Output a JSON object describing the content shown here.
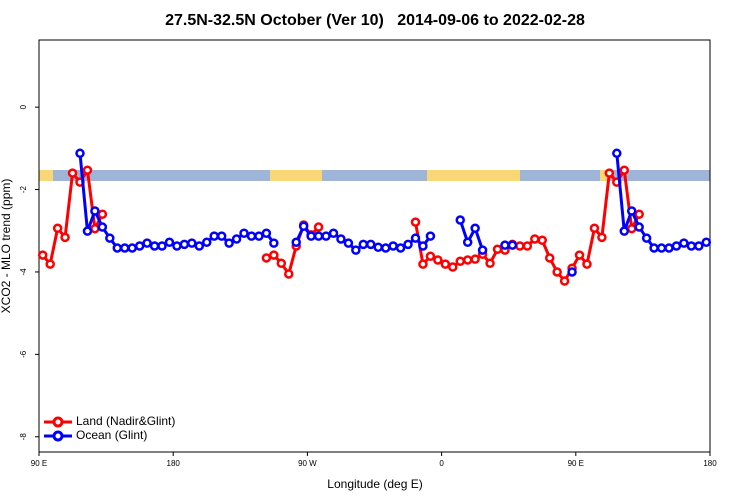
{
  "chart_data": {
    "type": "line",
    "title": "27.5N-32.5N October (Ver 10)   2014-09-06 to 2022-02-28",
    "x_label": "Longitude (deg E)",
    "y_label": "XCO2 - MLO trend (ppm)",
    "legend": "bottomleft",
    "xlim": [
      90,
      540
    ],
    "xticks": [
      {
        "value": 90,
        "label": "90 E"
      },
      180,
      {
        "value": 270,
        "label": "90 W"
      },
      {
        "value": 360,
        "label": "0"
      },
      {
        "value": 450,
        "label": "90 E"
      },
      {
        "value": 540,
        "label": "180"
      }
    ],
    "ylim": [
      -8.37,
      1.63
    ],
    "yticks": [
      0,
      -2,
      -4,
      -6,
      -8
    ],
    "x": [
      92.5,
      97.5,
      102.5,
      107.5,
      112.5,
      117.5,
      122.5,
      127.5,
      132.5,
      137.5,
      142.5,
      147.5,
      152.5,
      157.5,
      162.5,
      167.5,
      172.5,
      177.5,
      182.5,
      187.5,
      192.5,
      197.5,
      202.5,
      207.5,
      212.5,
      217.5,
      222.5,
      227.5,
      232.5,
      237.5,
      242.5,
      247.5,
      252.5,
      257.5,
      262.5,
      267.5,
      272.5,
      277.5,
      282.5,
      287.5,
      292.5,
      297.5,
      302.5,
      307.5,
      312.5,
      317.5,
      322.5,
      327.5,
      332.5,
      337.5,
      342.5,
      347.5,
      352.5,
      357.5,
      362.5,
      367.5,
      372.5,
      377.5,
      382.5,
      387.5,
      392.5,
      397.5,
      402.5,
      407.5,
      412.5,
      417.5,
      422.5,
      427.5,
      432.5,
      437.5,
      442.5,
      447.5,
      452.5,
      457.5,
      462.5,
      467.5,
      472.5,
      477.5,
      482.5,
      487.5,
      492.5,
      497.5,
      502.5,
      507.5,
      512.5,
      517.5,
      522.5,
      527.5,
      532.5,
      537.5
    ],
    "series": [
      {
        "name": "Land (Nadir&Glint)",
        "color": "#ff0000",
        "values": [
          -3.59,
          -3.81,
          -2.94,
          -3.16,
          -1.6,
          -1.82,
          -1.53,
          -2.95,
          -2.6,
          null,
          null,
          null,
          null,
          null,
          null,
          null,
          null,
          null,
          null,
          null,
          null,
          null,
          null,
          null,
          null,
          null,
          null,
          null,
          null,
          null,
          -3.66,
          -3.59,
          -3.79,
          -4.05,
          -3.37,
          -2.86,
          -3.1,
          -2.91,
          null,
          null,
          null,
          null,
          null,
          null,
          null,
          null,
          null,
          null,
          null,
          null,
          -2.79,
          -3.81,
          -3.62,
          -3.71,
          -3.81,
          -3.88,
          -3.74,
          -3.71,
          -3.69,
          -3.57,
          -3.79,
          -3.45,
          -3.47,
          -3.33,
          -3.37,
          -3.37,
          -3.2,
          -3.23,
          -3.66,
          -4.0,
          -4.22,
          -3.91,
          -3.59,
          -3.81,
          -2.94,
          -3.16,
          -1.6,
          -1.82,
          -1.53,
          -2.95,
          -2.6,
          null,
          null,
          null,
          null,
          null,
          null,
          null,
          null,
          null
        ]
      },
      {
        "name": "Ocean (Glint)",
        "color": "#0000ff",
        "values": [
          null,
          null,
          null,
          null,
          null,
          -1.12,
          -3.01,
          -2.52,
          -2.91,
          -3.18,
          -3.42,
          -3.42,
          -3.42,
          -3.37,
          -3.3,
          -3.37,
          -3.37,
          -3.28,
          -3.37,
          -3.33,
          -3.3,
          -3.37,
          -3.28,
          -3.13,
          -3.13,
          -3.3,
          -3.2,
          -3.06,
          -3.13,
          -3.13,
          -3.06,
          -3.3,
          null,
          null,
          -3.28,
          -2.89,
          -3.13,
          -3.13,
          -3.13,
          -3.06,
          -3.2,
          -3.3,
          -3.47,
          -3.33,
          -3.33,
          -3.4,
          -3.42,
          -3.37,
          -3.42,
          -3.33,
          -3.18,
          -3.37,
          -3.13,
          null,
          null,
          null,
          -2.74,
          -3.28,
          -2.94,
          -3.47,
          null,
          null,
          -3.35,
          -3.35,
          null,
          null,
          null,
          null,
          null,
          null,
          null,
          -4.0,
          null,
          null,
          null,
          null,
          null,
          -1.12,
          -3.01,
          -2.52,
          -2.91,
          -3.18,
          -3.42,
          -3.42,
          -3.42,
          -3.37,
          -3.3,
          -3.37,
          -3.37,
          -3.28
        ]
      }
    ]
  }
}
